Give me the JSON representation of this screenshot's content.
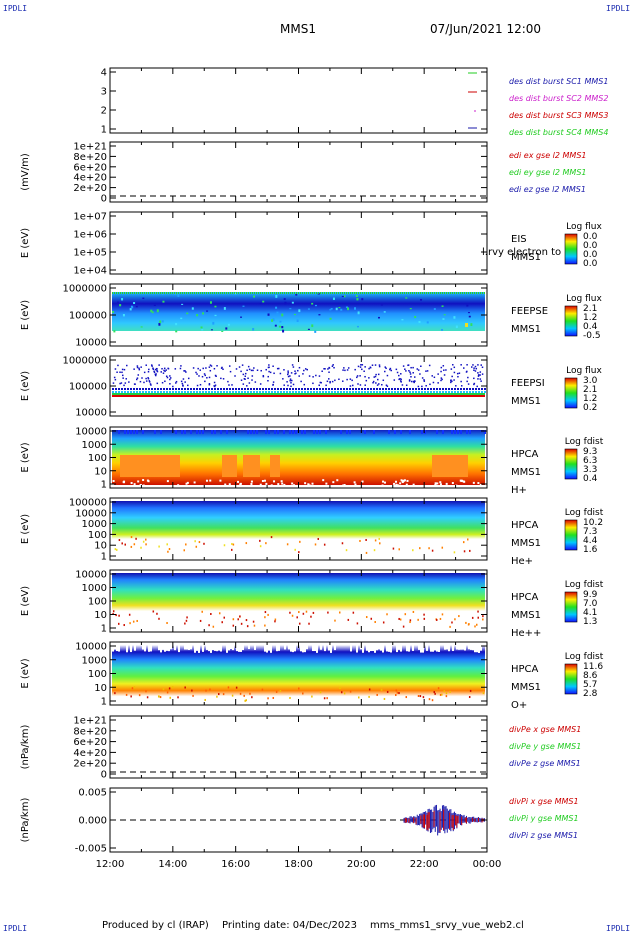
{
  "corners": {
    "tl": "IPDLI",
    "tr": "IPDLI",
    "bl": "IPDLI",
    "br": "IPDLI"
  },
  "header": {
    "mission": "MMS1",
    "datetime": "07/Jun/2021 12:00"
  },
  "footer": {
    "produced_by": "Produced by cl (IRAP)",
    "printing_date": "Printing date: 04/Dec/2023",
    "filename": "mms_mms1_srvy_vue_web2.cl"
  },
  "colors": {
    "red": "#cc0000",
    "green": "#22cc22",
    "blue": "#1a1aaa",
    "magenta": "#cc22cc"
  },
  "chart_data": [
    {
      "type": "scatter",
      "id": "burst",
      "yticks": [
        "4",
        "3",
        "2",
        "1"
      ],
      "legend": [
        {
          "label": "des dist burst SC1 MMS1",
          "color": "#1a1aaa"
        },
        {
          "label": "des dist burst SC2 MMS2",
          "color": "#cc22cc"
        },
        {
          "label": "des dist burst SC3 MMS3",
          "color": "#cc0000"
        },
        {
          "label": "des dist burst SC4 MMS4",
          "color": "#22cc22"
        }
      ]
    },
    {
      "type": "line",
      "id": "edi",
      "ylabel": "(mV/m)",
      "yticks": [
        "1e+21",
        "8e+20",
        "6e+20",
        "4e+20",
        "2e+20",
        "0"
      ],
      "legend": [
        {
          "label": "edi ex gse l2 MMS1",
          "color": "#cc0000"
        },
        {
          "label": "edi ey gse l2 MMS1",
          "color": "#22cc22"
        },
        {
          "label": "edi ez gse l2 MMS1",
          "color": "#1a1aaa"
        }
      ]
    },
    {
      "type": "heatmap",
      "id": "eis",
      "ylabel": "E (eV)",
      "yticks": [
        "1e+07",
        "1e+06",
        "1e+05",
        "1e+04"
      ],
      "labels": [
        "EIS",
        "MMS1"
      ],
      "overlay": "l.rvy electron to",
      "cbar": {
        "title": "Log flux",
        "ticks": [
          "0.0",
          "0.0",
          "0.0",
          "0.0"
        ]
      }
    },
    {
      "type": "heatmap",
      "id": "feepse",
      "ylabel": "E (eV)",
      "yticks": [
        "1000000",
        "100000",
        "10000"
      ],
      "labels": [
        "FEEPSE",
        "MMS1"
      ],
      "cbar": {
        "title": "Log flux",
        "ticks": [
          "2.1",
          "1.2",
          "0.4",
          "-0.5"
        ]
      }
    },
    {
      "type": "heatmap",
      "id": "feepsi",
      "ylabel": "E (eV)",
      "yticks": [
        "1000000",
        "100000",
        "10000"
      ],
      "labels": [
        "FEEPSI",
        "MMS1"
      ],
      "cbar": {
        "title": "Log flux",
        "ticks": [
          "3.0",
          "2.1",
          "1.2",
          "0.2"
        ]
      }
    },
    {
      "type": "heatmap",
      "id": "hpca_h",
      "ylabel": "E (eV)",
      "yticks": [
        "10000",
        "1000",
        "100",
        "10",
        "1"
      ],
      "labels": [
        "HPCA",
        "MMS1",
        "H+"
      ],
      "cbar": {
        "title": "Log fdist",
        "ticks": [
          "9.3",
          "6.3",
          "3.3",
          "0.4"
        ]
      }
    },
    {
      "type": "heatmap",
      "id": "hpca_he",
      "ylabel": "E (eV)",
      "yticks": [
        "100000",
        "10000",
        "1000",
        "100",
        "10",
        "1"
      ],
      "labels": [
        "HPCA",
        "MMS1",
        "He+"
      ],
      "cbar": {
        "title": "Log fdist",
        "ticks": [
          "10.2",
          "7.3",
          "4.4",
          "1.6"
        ]
      }
    },
    {
      "type": "heatmap",
      "id": "hpca_hepp",
      "ylabel": "E (eV)",
      "yticks": [
        "10000",
        "1000",
        "100",
        "10",
        "1"
      ],
      "labels": [
        "HPCA",
        "MMS1",
        "He++"
      ],
      "cbar": {
        "title": "Log fdist",
        "ticks": [
          "9.9",
          "7.0",
          "4.1",
          "1.3"
        ]
      }
    },
    {
      "type": "heatmap",
      "id": "hpca_o",
      "ylabel": "E (eV)",
      "yticks": [
        "10000",
        "1000",
        "100",
        "10",
        "1"
      ],
      "labels": [
        "HPCA",
        "MMS1",
        "O+"
      ],
      "cbar": {
        "title": "Log fdist",
        "ticks": [
          "11.6",
          "8.6",
          "5.7",
          "2.8"
        ]
      }
    },
    {
      "type": "line",
      "id": "divpe",
      "ylabel": "(nPa/km)",
      "yticks": [
        "1e+21",
        "8e+20",
        "6e+20",
        "4e+20",
        "2e+20",
        "0"
      ],
      "legend": [
        {
          "label": "divPe x gse MMS1",
          "color": "#cc0000"
        },
        {
          "label": "divPe y gse MMS1",
          "color": "#22cc22"
        },
        {
          "label": "divPe z gse MMS1",
          "color": "#1a1aaa"
        }
      ]
    },
    {
      "type": "line",
      "id": "divpi",
      "ylabel": "(nPa/km)",
      "yticks": [
        "0.005",
        "0.000",
        "-0.005"
      ],
      "legend": [
        {
          "label": "divPi x gse MMS1",
          "color": "#cc0000"
        },
        {
          "label": "divPi y gse MMS1",
          "color": "#22cc22"
        },
        {
          "label": "divPi z gse MMS1",
          "color": "#1a1aaa"
        }
      ]
    }
  ],
  "xaxis": {
    "ticks": [
      "12:00",
      "14:00",
      "16:00",
      "18:00",
      "20:00",
      "22:00",
      "00:00"
    ]
  }
}
